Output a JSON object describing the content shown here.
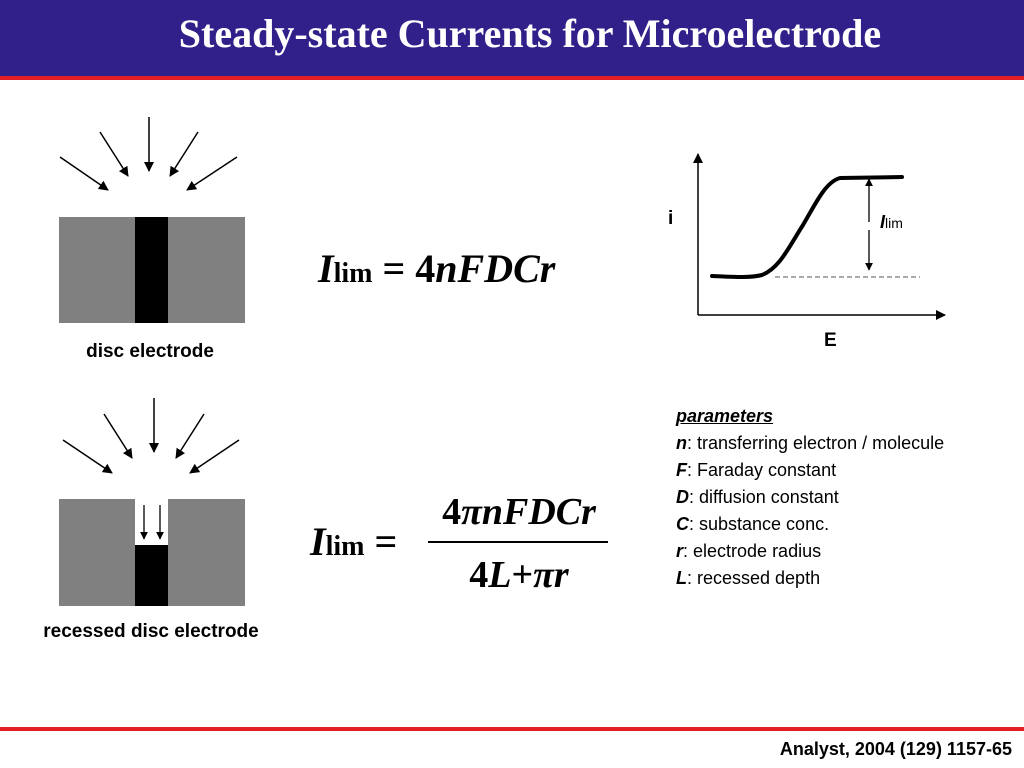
{
  "header": {
    "title": "Steady-state Currents for Microelectrode",
    "bar_color": "#32208a",
    "accent_color": "#e31e24"
  },
  "diagrams": {
    "disc_caption": "disc electrode",
    "recessed_caption": "recessed disc electrode"
  },
  "equations": {
    "disc": {
      "lhs_symbol": "I",
      "lhs_subscript": "lim",
      "equals": "=",
      "rhs_coeff": "4",
      "rhs_vars": "nFDCr"
    },
    "recessed": {
      "lhs_symbol": "I",
      "lhs_subscript": "lim",
      "equals": "=",
      "num_coeff": "4",
      "num_vars": "πnFDCr",
      "den_coeff": "4",
      "den_var": "L",
      "den_plus": "+",
      "den_vars": "πr"
    }
  },
  "graph": {
    "y_label": "i",
    "x_label": "E",
    "limit_symbol": "I",
    "limit_subscript": "lim"
  },
  "parameters": {
    "heading": "parameters",
    "items": [
      {
        "symbol": "n",
        "text": ": transferring electron / molecule"
      },
      {
        "symbol": "F",
        "text": ": Faraday constant"
      },
      {
        "symbol": "D",
        "text": ": diffusion constant"
      },
      {
        "symbol": "C",
        "text": ": substance conc."
      },
      {
        "symbol": "r",
        "text": ": electrode radius"
      },
      {
        "symbol": "L",
        "text": ": recessed depth"
      }
    ]
  },
  "footer": {
    "citation": "Analyst, 2004 (129) 1157-65"
  }
}
